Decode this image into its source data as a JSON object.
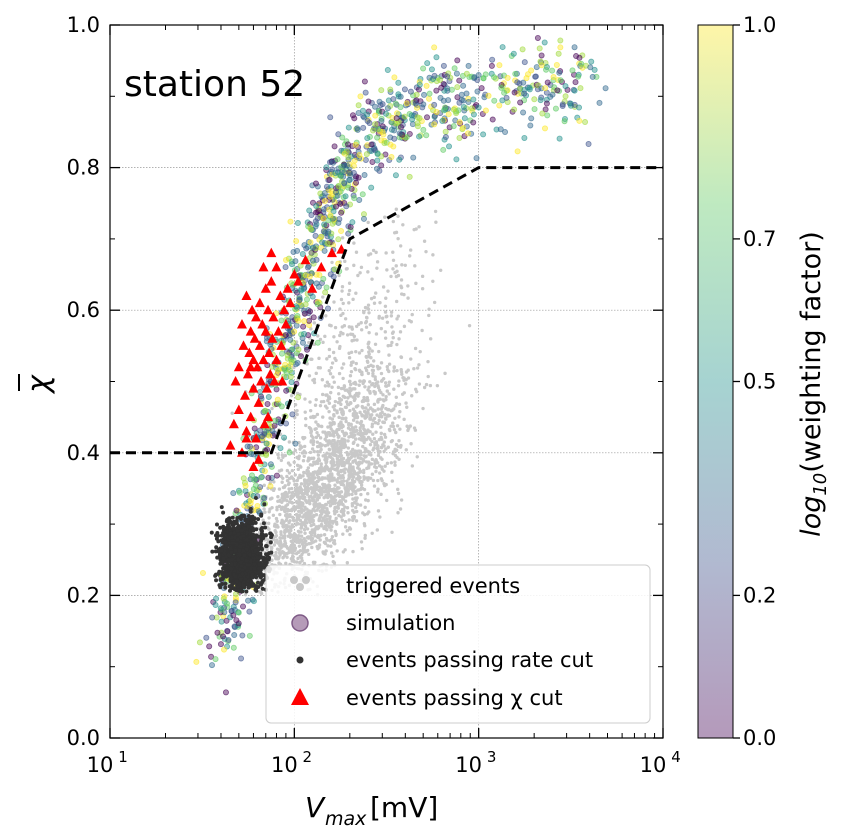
{
  "chart_data": {
    "type": "scatter",
    "annotation": "station 52",
    "xlabel_main": "V",
    "xlabel_sub": "max",
    "xlabel_unit": " [mV]",
    "ylabel": "χ",
    "xscale": "log",
    "xlim": [
      10,
      10000
    ],
    "ylim": [
      0.0,
      1.0
    ],
    "x_ticks": [
      {
        "base": "10",
        "exp": "1",
        "value": 10
      },
      {
        "base": "10",
        "exp": "2",
        "value": 100
      },
      {
        "base": "10",
        "exp": "3",
        "value": 1000
      },
      {
        "base": "10",
        "exp": "4",
        "value": 10000
      }
    ],
    "y_ticks": [
      {
        "label": "0.0",
        "value": 0.0
      },
      {
        "label": "0.2",
        "value": 0.2
      },
      {
        "label": "0.4",
        "value": 0.4
      },
      {
        "label": "0.6",
        "value": 0.6
      },
      {
        "label": "0.8",
        "value": 0.8
      },
      {
        "label": "1.0",
        "value": 1.0
      }
    ],
    "grid": true,
    "cut_line": {
      "x": [
        10,
        75,
        200,
        1000,
        10000
      ],
      "y": [
        0.4,
        0.4,
        0.7,
        0.8,
        0.8
      ]
    },
    "colorbar": {
      "label_prefix": "log",
      "label_sub": "10",
      "label_suffix": "(weighting factor)",
      "range": [
        0.0,
        1.0
      ],
      "ticks": [
        {
          "label": "0.0",
          "value": 0.0
        },
        {
          "label": "0.2",
          "value": 0.2
        },
        {
          "label": "0.5",
          "value": 0.5
        },
        {
          "label": "0.7",
          "value": 0.7
        },
        {
          "label": "1.0",
          "value": 1.0
        }
      ],
      "colormap": "viridis"
    },
    "series": [
      {
        "name": "triggered events",
        "color": "#c8c8c8",
        "marker": "dot",
        "clusters": [
          {
            "x_log_center": 2.25,
            "x_log_spread": 0.18,
            "y_center": 0.38,
            "y_spread": 0.06,
            "count": 1400
          },
          {
            "x_log_center": 2.0,
            "x_log_spread": 0.12,
            "y_center": 0.3,
            "y_spread": 0.04,
            "count": 500
          },
          {
            "x_log_center": 2.3,
            "x_log_spread": 0.2,
            "y_center": 0.55,
            "y_spread": 0.08,
            "count": 350
          }
        ]
      },
      {
        "name": "simulation",
        "color": "#b59bb8",
        "marker": "circle-viridis",
        "band": [
          [
            40,
            0.13
          ],
          [
            55,
            0.3
          ],
          [
            80,
            0.5
          ],
          [
            110,
            0.62
          ],
          [
            150,
            0.73
          ],
          [
            220,
            0.83
          ],
          [
            400,
            0.88
          ],
          [
            1000,
            0.9
          ],
          [
            4000,
            0.92
          ]
        ]
      },
      {
        "name": "events passing rate cut",
        "color": "#333333",
        "marker": "dot",
        "clusters": [
          {
            "x_log_center": 1.72,
            "x_log_spread": 0.06,
            "y_center": 0.255,
            "y_spread": 0.025,
            "count": 1200
          }
        ]
      },
      {
        "name": "events passing χ cut",
        "color": "#ff0000",
        "marker": "triangle",
        "points": [
          [
            45,
            0.41
          ],
          [
            47,
            0.44
          ],
          [
            48,
            0.5
          ],
          [
            50,
            0.52
          ],
          [
            50,
            0.46
          ],
          [
            52,
            0.58
          ],
          [
            53,
            0.55
          ],
          [
            54,
            0.48
          ],
          [
            55,
            0.62
          ],
          [
            55,
            0.43
          ],
          [
            56,
            0.51
          ],
          [
            57,
            0.54
          ],
          [
            58,
            0.57
          ],
          [
            58,
            0.45
          ],
          [
            59,
            0.6
          ],
          [
            60,
            0.49
          ],
          [
            60,
            0.53
          ],
          [
            61,
            0.56
          ],
          [
            62,
            0.42
          ],
          [
            62,
            0.59
          ],
          [
            63,
            0.52
          ],
          [
            64,
            0.47
          ],
          [
            65,
            0.61
          ],
          [
            65,
            0.55
          ],
          [
            66,
            0.5
          ],
          [
            67,
            0.58
          ],
          [
            68,
            0.53
          ],
          [
            69,
            0.44
          ],
          [
            70,
            0.63
          ],
          [
            70,
            0.57
          ],
          [
            71,
            0.49
          ],
          [
            72,
            0.6
          ],
          [
            73,
            0.54
          ],
          [
            74,
            0.51
          ],
          [
            75,
            0.64
          ],
          [
            76,
            0.56
          ],
          [
            77,
            0.59
          ],
          [
            78,
            0.5
          ],
          [
            80,
            0.66
          ],
          [
            80,
            0.53
          ],
          [
            82,
            0.57
          ],
          [
            84,
            0.62
          ],
          [
            85,
            0.55
          ],
          [
            88,
            0.6
          ],
          [
            90,
            0.58
          ],
          [
            92,
            0.63
          ],
          [
            95,
            0.61
          ],
          [
            100,
            0.65
          ],
          [
            105,
            0.64
          ],
          [
            115,
            0.67
          ],
          [
            125,
            0.63
          ],
          [
            140,
            0.66
          ],
          [
            160,
            0.68
          ],
          [
            180,
            0.685
          ],
          [
            60,
            0.38
          ],
          [
            55,
            0.42
          ],
          [
            52,
            0.4
          ],
          [
            64,
            0.39
          ],
          [
            72,
            0.45
          ],
          [
            86,
            0.5
          ],
          [
            68,
            0.66
          ],
          [
            75,
            0.68
          ],
          [
            58,
            0.52
          ]
        ]
      }
    ]
  }
}
